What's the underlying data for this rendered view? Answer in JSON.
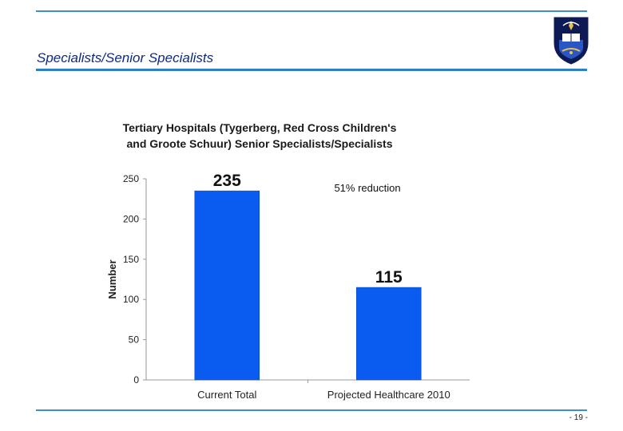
{
  "slide": {
    "title": "Specialists/Senior Specialists",
    "page_number": "- 19 -"
  },
  "logo": {
    "icon": "university-crest-icon",
    "colors": {
      "navy": "#0d1a55",
      "gold": "#e8c34a",
      "blue": "#2a56c6"
    }
  },
  "colors": {
    "accent_rule": "#3b8fd0",
    "bar": "#0a5cf0",
    "title": "#0b2a8a"
  },
  "chart_data": {
    "type": "bar",
    "title_lines": [
      "Tertiary Hospitals (Tygerberg, Red Cross Children's",
      "and Groote Schuur) Senior Specialists/Specialists"
    ],
    "categories": [
      "Current Total",
      "Projected Healthcare 2010"
    ],
    "values": [
      235,
      115
    ],
    "data_labels": [
      "235",
      "115"
    ],
    "ylabel": "Number",
    "xlabel": "",
    "ylim": [
      0,
      250
    ],
    "yticks": [
      0,
      50,
      100,
      150,
      200,
      250
    ],
    "annotation": "51% reduction",
    "grid": false
  }
}
